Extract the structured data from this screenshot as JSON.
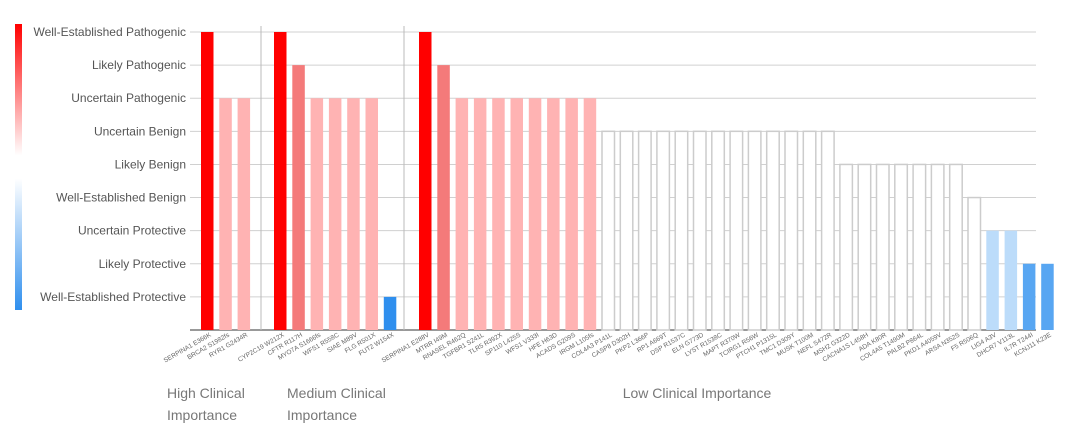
{
  "chart_data": {
    "type": "bar",
    "y_categories": [
      "Well-Established Pathogenic",
      "Likely Pathogenic",
      "Uncertain Pathogenic",
      "Uncertain Benign",
      "Likely Benign",
      "Well-Established Benign",
      "Uncertain Protective",
      "Likely Protective",
      "Well-Established Protective"
    ],
    "score_scale": "4 = Well-Established Pathogenic … -4 = Well-Established Protective",
    "groups": [
      {
        "label": "High Clinical Importance",
        "bars": [
          {
            "label": "SERPINA1 E366K",
            "value": 4
          },
          {
            "label": "BRCA2 S1982fs",
            "value": 2
          },
          {
            "label": "RYR1 G2434R",
            "value": 2
          }
        ]
      },
      {
        "label": "Medium Clinical Importance",
        "bars": [
          {
            "label": "CYP2C19 W212X",
            "value": 4
          },
          {
            "label": "CFTR R117H",
            "value": 3
          },
          {
            "label": "MYO7A S1666fs",
            "value": 2
          },
          {
            "label": "WFS1 R558C",
            "value": 2
          },
          {
            "label": "SIAE M89V",
            "value": 2
          },
          {
            "label": "FLG R501X",
            "value": 2
          },
          {
            "label": "FUT2 W154X",
            "value": -4
          }
        ]
      },
      {
        "label": "Low Clinical Importance",
        "bars": [
          {
            "label": "SERPINA1 E288V",
            "value": 4
          },
          {
            "label": "MTRR I49M",
            "value": 3
          },
          {
            "label": "RNASEL R462Q",
            "value": 2
          },
          {
            "label": "TGFBR1 S241L",
            "value": 2
          },
          {
            "label": "TLR5 R392X",
            "value": 2
          },
          {
            "label": "SP110 L425S",
            "value": 2
          },
          {
            "label": "WFS1 V333I",
            "value": 2
          },
          {
            "label": "HFE H63D",
            "value": 2
          },
          {
            "label": "ACADS G209S",
            "value": 2
          },
          {
            "label": "IRGM L105fs",
            "value": 2
          },
          {
            "label": "COL4A3 P141L",
            "value": 1
          },
          {
            "label": "CASP8 D302H",
            "value": 1
          },
          {
            "label": "PKP2 L366P",
            "value": 1
          },
          {
            "label": "RP1 A669T",
            "value": 1
          },
          {
            "label": "DSP R1537C",
            "value": 1
          },
          {
            "label": "ELN G773D",
            "value": 1
          },
          {
            "label": "LYST R1538C",
            "value": 1
          },
          {
            "label": "MAPT R370W",
            "value": 1
          },
          {
            "label": "TCIRG1 R56W",
            "value": 1
          },
          {
            "label": "PTCH1 P1315L",
            "value": 1
          },
          {
            "label": "TMC1 D309Y",
            "value": 1
          },
          {
            "label": "MUSK T100M",
            "value": 1
          },
          {
            "label": "NEFL S472R",
            "value": 1
          },
          {
            "label": "MSH2 G322D",
            "value": 0
          },
          {
            "label": "CACNA1S L458H",
            "value": 0
          },
          {
            "label": "ADA K80R",
            "value": 0
          },
          {
            "label": "COL4A5 T1490M",
            "value": 0
          },
          {
            "label": "PALB2 P864L",
            "value": 0
          },
          {
            "label": "PKD1 A4059V",
            "value": 0
          },
          {
            "label": "ARSA N352S",
            "value": 0
          },
          {
            "label": "F5 R506Q",
            "value": -1
          },
          {
            "label": "LIG4 A3V",
            "value": -2
          },
          {
            "label": "DHCR7 V113L",
            "value": -2
          },
          {
            "label": "IL7R T244I",
            "value": -3
          },
          {
            "label": "KCNJ11 K23E",
            "value": -3
          }
        ]
      }
    ],
    "colors": {
      "strong_pathogenic": "#ff0000",
      "likely_pathogenic": "#f47a7a",
      "uncertain_pathogenic": "#ffb3b3",
      "uncertain_benign": "#ffffff",
      "likely_benign": "#ffffff",
      "wellestablished_benign": "#ffffff",
      "uncertain_protective": "#bcdcfa",
      "likely_protective": "#58a6f2",
      "strong_protective": "#2f8fee",
      "bar_outline": "#cccccc",
      "gridline": "#d0d0d0",
      "axis": "#333333"
    }
  }
}
